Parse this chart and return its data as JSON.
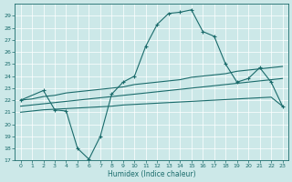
{
  "xlabel": "Humidex (Indice chaleur)",
  "background_color": "#cce8e8",
  "grid_color": "#ffffff",
  "line_color": "#1a6b6b",
  "xlim": [
    -0.5,
    23.5
  ],
  "ylim": [
    17,
    30
  ],
  "yticks": [
    17,
    18,
    19,
    20,
    21,
    22,
    23,
    24,
    25,
    26,
    27,
    28,
    29
  ],
  "xticks": [
    0,
    1,
    2,
    3,
    4,
    5,
    6,
    7,
    8,
    9,
    10,
    11,
    12,
    13,
    14,
    15,
    16,
    17,
    18,
    19,
    20,
    21,
    22,
    23
  ],
  "line_main_x": [
    0,
    2,
    3,
    4,
    5,
    6,
    7,
    8,
    9,
    10,
    11,
    12,
    13,
    14,
    15,
    16,
    17,
    18,
    19,
    20,
    21,
    22,
    23
  ],
  "line_main_y": [
    22.0,
    22.8,
    21.2,
    21.1,
    18.0,
    17.1,
    19.0,
    22.5,
    23.5,
    24.0,
    26.5,
    28.3,
    29.2,
    29.3,
    29.5,
    27.7,
    27.3,
    25.0,
    23.5,
    23.8,
    24.7,
    23.5,
    21.5
  ],
  "line_upper_x": [
    0,
    1,
    2,
    3,
    4,
    5,
    6,
    7,
    8,
    9,
    10,
    11,
    12,
    13,
    14,
    15,
    16,
    17,
    18,
    19,
    20,
    21,
    22,
    23
  ],
  "line_upper_y": [
    22.0,
    22.1,
    22.3,
    22.4,
    22.6,
    22.7,
    22.8,
    22.9,
    23.0,
    23.1,
    23.3,
    23.4,
    23.5,
    23.6,
    23.7,
    23.9,
    24.0,
    24.1,
    24.2,
    24.4,
    24.5,
    24.6,
    24.7,
    24.8
  ],
  "line_mid_x": [
    0,
    1,
    2,
    3,
    4,
    5,
    6,
    7,
    8,
    9,
    10,
    11,
    12,
    13,
    14,
    15,
    16,
    17,
    18,
    19,
    20,
    21,
    22,
    23
  ],
  "line_mid_y": [
    21.5,
    21.6,
    21.7,
    21.8,
    21.9,
    22.0,
    22.1,
    22.2,
    22.3,
    22.4,
    22.5,
    22.6,
    22.7,
    22.8,
    22.9,
    23.0,
    23.1,
    23.2,
    23.3,
    23.4,
    23.5,
    23.6,
    23.7,
    23.8
  ],
  "line_lower_x": [
    0,
    1,
    2,
    3,
    4,
    5,
    6,
    7,
    8,
    9,
    10,
    11,
    12,
    13,
    14,
    15,
    16,
    17,
    18,
    19,
    20,
    21,
    22,
    23
  ],
  "line_lower_y": [
    21.0,
    21.1,
    21.2,
    21.25,
    21.3,
    21.35,
    21.4,
    21.45,
    21.5,
    21.6,
    21.65,
    21.7,
    21.75,
    21.8,
    21.85,
    21.9,
    21.95,
    22.0,
    22.05,
    22.1,
    22.15,
    22.2,
    22.25,
    21.5
  ]
}
